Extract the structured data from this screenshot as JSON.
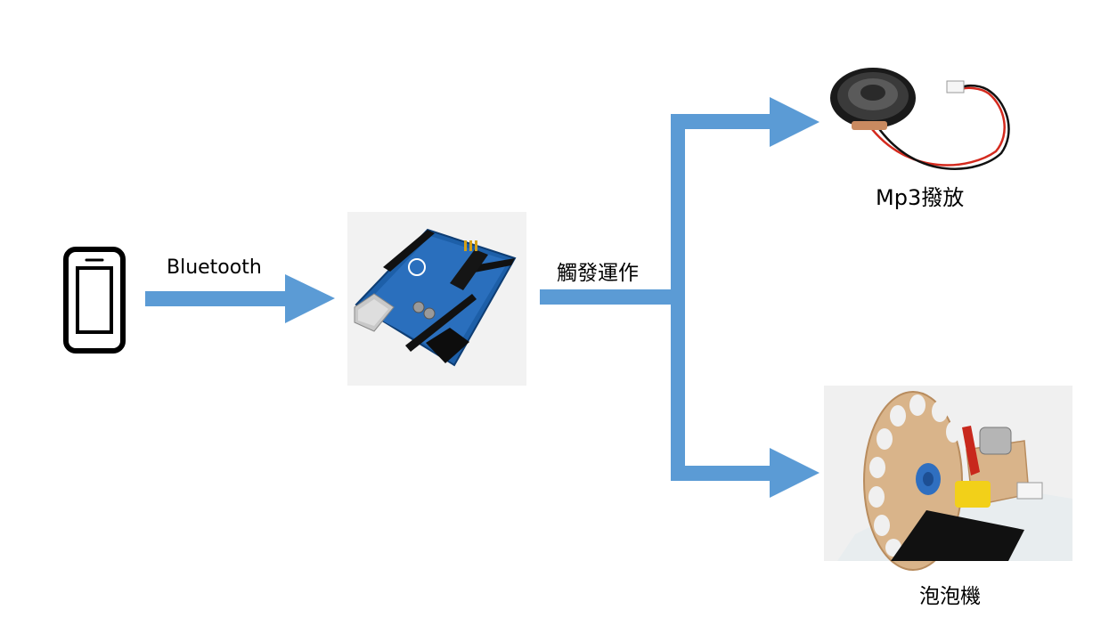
{
  "diagram": {
    "arrow_color": "#5b9bd5",
    "labels": {
      "bluetooth": "Bluetooth",
      "trigger": "觸發運作",
      "mp3": "Mp3撥放",
      "bubble": "泡泡機"
    },
    "nodes": {
      "phone": {
        "icon": "smartphone-icon"
      },
      "controller": {
        "icon": "arduino-board-image"
      },
      "speaker": {
        "icon": "speaker-image"
      },
      "bubble_machine": {
        "icon": "bubble-machine-image"
      }
    }
  }
}
